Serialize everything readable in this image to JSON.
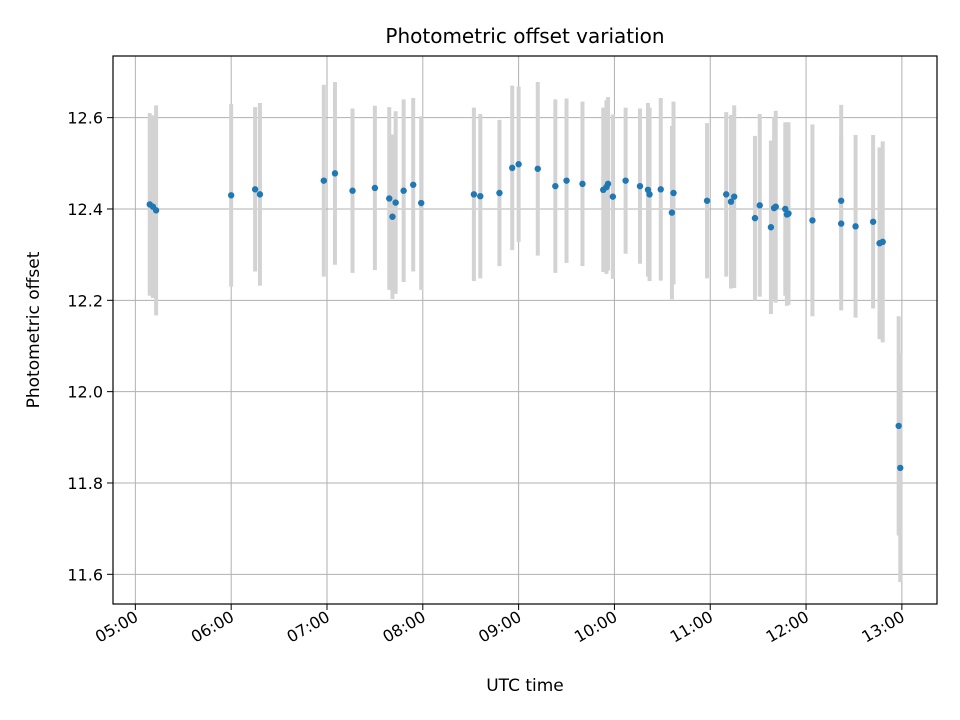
{
  "chart_data": {
    "type": "scatter",
    "title": "Photometric offset variation",
    "xlabel": "UTC time",
    "ylabel": "Photometric offset",
    "xlim": [
      "04:46",
      "13:22"
    ],
    "ylim": [
      11.535,
      12.735
    ],
    "x_ticks": [
      "05:00",
      "06:00",
      "07:00",
      "08:00",
      "09:00",
      "10:00",
      "11:00",
      "12:00",
      "13:00"
    ],
    "y_ticks": [
      "11.6",
      "11.8",
      "12.0",
      "12.2",
      "12.4",
      "12.6"
    ],
    "grid": true,
    "legend": "none",
    "colors": {
      "points": "#1f77b4",
      "error_bars": "#d3d3d3",
      "grid": "#b0b0b0"
    },
    "series": [
      {
        "x": [
          "05:09",
          "05:11",
          "05:13",
          "06:00",
          "06:15",
          "06:18",
          "06:58",
          "07:05",
          "07:16",
          "07:30",
          "07:39",
          "07:41",
          "07:43",
          "07:48",
          "07:54",
          "07:59",
          "08:32",
          "08:36",
          "08:48",
          "08:56",
          "09:00",
          "09:12",
          "09:23",
          "09:30",
          "09:40",
          "09:53",
          "09:55",
          "09:56",
          "09:59",
          "10:07",
          "10:16",
          "10:21",
          "10:22",
          "10:29",
          "10:36",
          "10:37",
          "10:58",
          "11:10",
          "11:13",
          "11:15",
          "11:28",
          "11:31",
          "11:38",
          "11:40",
          "11:41",
          "11:47",
          "11:48",
          "11:49",
          "12:04",
          "12:22",
          "12:22",
          "12:31",
          "12:42",
          "12:46",
          "12:48",
          "12:58",
          "12:59"
        ],
        "y": [
          12.41,
          12.405,
          12.397,
          12.43,
          12.443,
          12.432,
          12.462,
          12.478,
          12.44,
          12.446,
          12.423,
          12.383,
          12.414,
          12.44,
          12.453,
          12.413,
          12.432,
          12.428,
          12.435,
          12.49,
          12.498,
          12.488,
          12.45,
          12.462,
          12.455,
          12.442,
          12.448,
          12.455,
          12.427,
          12.462,
          12.45,
          12.442,
          12.432,
          12.443,
          12.392,
          12.435,
          12.418,
          12.432,
          12.416,
          12.427,
          12.38,
          12.408,
          12.36,
          12.402,
          12.405,
          12.4,
          12.388,
          12.39,
          12.375,
          12.418,
          12.368,
          12.362,
          12.372,
          12.325,
          12.328,
          11.925,
          11.833
        ],
        "yerr": [
          0.2,
          0.2,
          0.23,
          0.2,
          0.18,
          0.2,
          0.21,
          0.2,
          0.18,
          0.18,
          0.2,
          0.18,
          0.2,
          0.2,
          0.19,
          0.19,
          0.19,
          0.18,
          0.16,
          0.18,
          0.17,
          0.19,
          0.19,
          0.18,
          0.18,
          0.18,
          0.19,
          0.19,
          0.18,
          0.16,
          0.17,
          0.19,
          0.19,
          0.2,
          0.19,
          0.2,
          0.17,
          0.18,
          0.19,
          0.2,
          0.18,
          0.2,
          0.19,
          0.2,
          0.21,
          0.19,
          0.2,
          0.2,
          0.21,
          0.21,
          0.19,
          0.2,
          0.19,
          0.21,
          0.22,
          0.24,
          0.25
        ]
      }
    ]
  }
}
